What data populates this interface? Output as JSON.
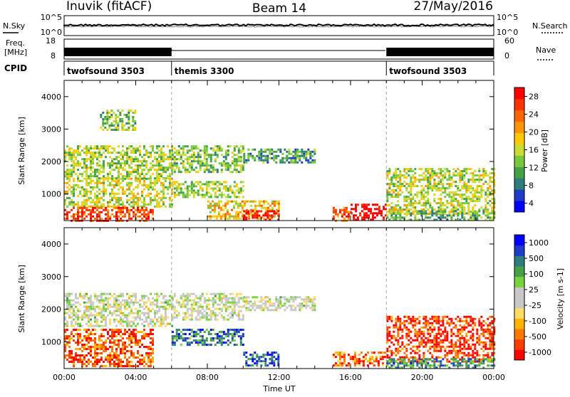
{
  "header": {
    "station": "Inuvik (fitACF)",
    "beam": "Beam 14",
    "date": "27/May/2016"
  },
  "top_panels": {
    "nsky_label": "N.Sky",
    "nsearch_label": "N.Search",
    "nsky_ticks": [
      "10^5",
      "10^0"
    ],
    "nsearch_ticks": [
      "10^5",
      "10^0"
    ],
    "freq_label_line1": "Freq.",
    "freq_label_line2": "[MHz]",
    "freq_ticks": [
      "18",
      "8"
    ],
    "nave_label": "Nave",
    "nave_ticks": [
      "60",
      "0"
    ],
    "cpid_label": "CPID",
    "cpid_segments": [
      {
        "name": "twofsound 3503",
        "start": 0,
        "end": 6
      },
      {
        "name": "themis 3300",
        "start": 6,
        "end": 18
      },
      {
        "name": "twofsound 3503",
        "start": 18,
        "end": 24
      }
    ]
  },
  "chart_data": [
    {
      "type": "heatmap",
      "title": "",
      "xlabel": "",
      "ylabel": "Slant Range [km]",
      "xlim": [
        0,
        24
      ],
      "ylim": [
        180,
        4500
      ],
      "yticks": [
        "1000",
        "2000",
        "3000",
        "4000"
      ],
      "colorbar": {
        "label": "Power [dB]",
        "ticks": [
          "28",
          "24",
          "20",
          "16",
          "12",
          "8",
          "4"
        ],
        "colors": [
          "#0000ff",
          "#1e3cc8",
          "#2d7d7d",
          "#46a046",
          "#78c83c",
          "#c8dc32",
          "#ffc800",
          "#ff9600",
          "#ff6400",
          "#ff3200",
          "#ff0000"
        ]
      },
      "regions": [
        {
          "t0": 0.0,
          "t1": 6.0,
          "r0": 1500,
          "r1": 2500,
          "level": 0.45
        },
        {
          "t0": 0.0,
          "t1": 6.0,
          "r0": 600,
          "r1": 1500,
          "level": 0.5
        },
        {
          "t0": 0.0,
          "t1": 5.0,
          "r0": 200,
          "r1": 600,
          "level": 0.85
        },
        {
          "t0": 2.0,
          "t1": 4.0,
          "r0": 3000,
          "r1": 3600,
          "level": 0.4
        },
        {
          "t0": 6.0,
          "t1": 10.0,
          "r0": 1700,
          "r1": 2500,
          "level": 0.4
        },
        {
          "t0": 6.0,
          "t1": 10.0,
          "r0": 900,
          "r1": 1400,
          "level": 0.45
        },
        {
          "t0": 8.0,
          "t1": 12.0,
          "r0": 250,
          "r1": 800,
          "level": 0.6
        },
        {
          "t0": 10.0,
          "t1": 12.0,
          "r0": 200,
          "r1": 500,
          "level": 1.0
        },
        {
          "t0": 10.0,
          "t1": 14.0,
          "r0": 2000,
          "r1": 2400,
          "level": 0.3
        },
        {
          "t0": 16.0,
          "t1": 18.0,
          "r0": 200,
          "r1": 700,
          "level": 1.0
        },
        {
          "t0": 15.0,
          "t1": 16.0,
          "r0": 200,
          "r1": 600,
          "level": 0.8
        },
        {
          "t0": 18.0,
          "t1": 24.0,
          "r0": 400,
          "r1": 1800,
          "level": 0.5
        },
        {
          "t0": 18.0,
          "t1": 24.0,
          "r0": 200,
          "r1": 500,
          "level": 0.35
        }
      ]
    },
    {
      "type": "heatmap",
      "title": "",
      "xlabel": "Time UT",
      "ylabel": "Slant Range [km]",
      "xlim": [
        0,
        24
      ],
      "ylim": [
        180,
        4500
      ],
      "xticks": [
        "00:00",
        "04:00",
        "08:00",
        "12:00",
        "16:00",
        "20:00",
        "00:00"
      ],
      "yticks": [
        "1000",
        "2000",
        "3000",
        "4000"
      ],
      "colorbar": {
        "label": "Velocity [m s-1]",
        "ticks": [
          "1000",
          "500",
          "100",
          "25",
          "-25",
          "-100",
          "-500",
          "-1000"
        ],
        "colors": [
          "#ff0000",
          "#ff3c00",
          "#ff7800",
          "#ffb400",
          "#ffdc64",
          "#c8c8c8",
          "#c8c8c8",
          "#78d23c",
          "#46a046",
          "#2d7d7d",
          "#1e3cc8",
          "#0000ff"
        ]
      },
      "regions": [
        {
          "t0": 0.0,
          "t1": 6.0,
          "r0": 1500,
          "r1": 2500,
          "level": 0.5
        },
        {
          "t0": 0.0,
          "t1": 5.0,
          "r0": 250,
          "r1": 1400,
          "level": 0.15
        },
        {
          "t0": 6.0,
          "t1": 10.0,
          "r0": 1700,
          "r1": 2500,
          "level": 0.5
        },
        {
          "t0": 6.0,
          "t1": 10.0,
          "r0": 900,
          "r1": 1400,
          "level": 0.8
        },
        {
          "t0": 10.0,
          "t1": 12.0,
          "r0": 300,
          "r1": 700,
          "level": 0.85
        },
        {
          "t0": 10.0,
          "t1": 14.0,
          "r0": 2000,
          "r1": 2400,
          "level": 0.5
        },
        {
          "t0": 15.0,
          "t1": 18.0,
          "r0": 250,
          "r1": 700,
          "level": 0.2
        },
        {
          "t0": 18.0,
          "t1": 24.0,
          "r0": 400,
          "r1": 1800,
          "level": 0.1
        },
        {
          "t0": 18.0,
          "t1": 24.0,
          "r0": 200,
          "r1": 500,
          "level": 0.75
        }
      ]
    }
  ]
}
